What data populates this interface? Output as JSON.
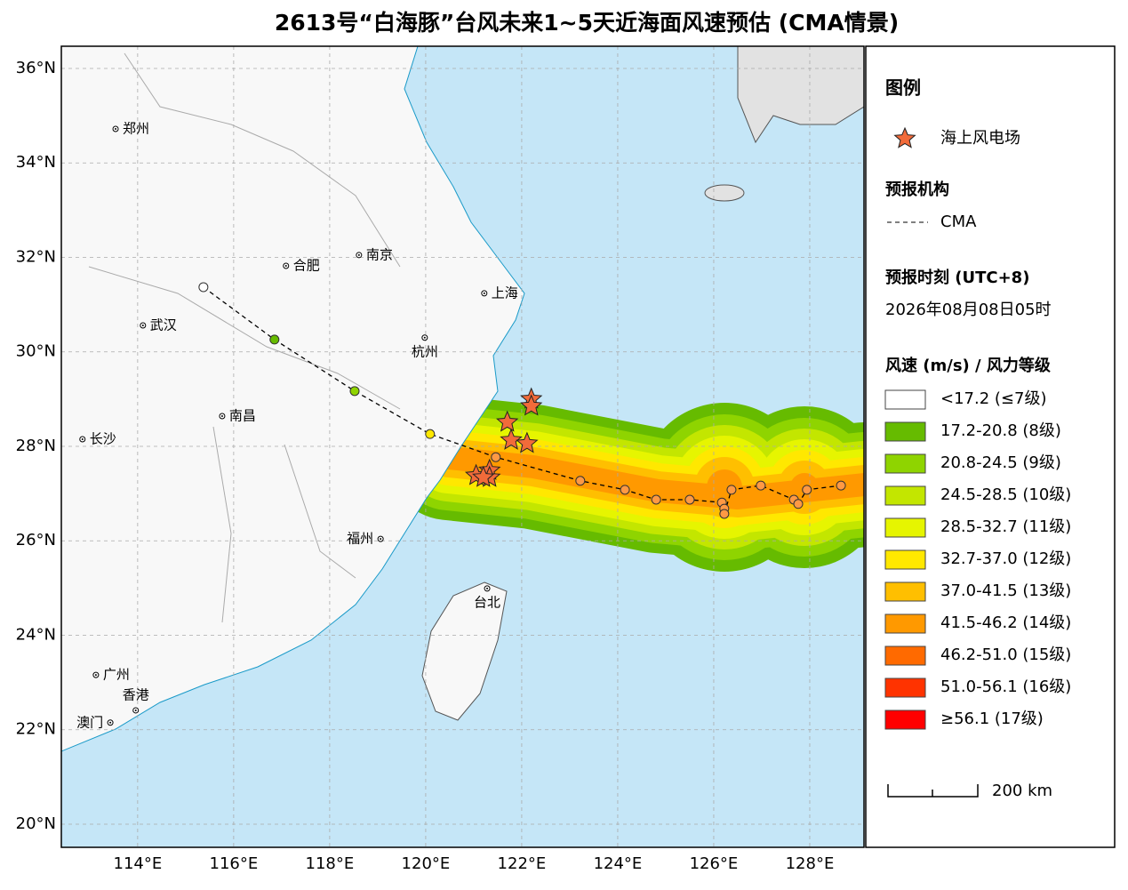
{
  "title": "2613号“白海豚”台风未来1~5天近海面风速预估 (CMA情景)",
  "map": {
    "xlim": [
      112.41,
      129.13
    ],
    "ylim": [
      19.51,
      36.47
    ],
    "yticks": [
      {
        "value": 20,
        "label": "20°N"
      },
      {
        "value": 22,
        "label": "22°N"
      },
      {
        "value": 24,
        "label": "24°N"
      },
      {
        "value": 26,
        "label": "26°N"
      },
      {
        "value": 28,
        "label": "28°N"
      },
      {
        "value": 30,
        "label": "30°N"
      },
      {
        "value": 32,
        "label": "32°N"
      },
      {
        "value": 34,
        "label": "34°N"
      },
      {
        "value": 36,
        "label": "36°N"
      }
    ],
    "xticks": [
      {
        "value": 114,
        "label": "114°E"
      },
      {
        "value": 116,
        "label": "116°E"
      },
      {
        "value": 118,
        "label": "118°E"
      },
      {
        "value": 120,
        "label": "120°E"
      },
      {
        "value": 122,
        "label": "122°E"
      },
      {
        "value": 124,
        "label": "124°E"
      },
      {
        "value": 126,
        "label": "126°E"
      },
      {
        "value": 128,
        "label": "128°E"
      }
    ],
    "grid": true
  },
  "cities": [
    {
      "label": "郑州",
      "lon": 113.54,
      "lat": 34.72
    },
    {
      "label": "合肥",
      "lon": 117.09,
      "lat": 31.82
    },
    {
      "label": "南京",
      "lon": 118.61,
      "lat": 32.05
    },
    {
      "label": "上海",
      "lon": 121.22,
      "lat": 31.24
    },
    {
      "label": "武汉",
      "lon": 114.11,
      "lat": 30.56
    },
    {
      "label": "杭州",
      "lon": 119.98,
      "lat": 30.3
    },
    {
      "label": "南昌",
      "lon": 115.76,
      "lat": 28.64
    },
    {
      "label": "长沙",
      "lon": 112.85,
      "lat": 28.15
    },
    {
      "label": "福州",
      "lon": 119.06,
      "lat": 26.04
    },
    {
      "label": "台北",
      "lon": 121.28,
      "lat": 24.99
    },
    {
      "label": "广州",
      "lon": 113.13,
      "lat": 23.16
    },
    {
      "label": "香港",
      "lon": 113.96,
      "lat": 22.41
    },
    {
      "label": "澳门",
      "lon": 113.43,
      "lat": 22.15
    }
  ],
  "track": [
    {
      "lon": 115.37,
      "lat": 31.37,
      "color": "#ffffff"
    },
    {
      "lon": 116.85,
      "lat": 30.26,
      "color": "#66bb00"
    },
    {
      "lon": 118.52,
      "lat": 29.17,
      "color": "#8fd400"
    },
    {
      "lon": 120.09,
      "lat": 28.26,
      "color": "#ffe800"
    },
    {
      "lon": 121.46,
      "lat": 27.77,
      "color": "#ff9944"
    },
    {
      "lon": 123.22,
      "lat": 27.27,
      "color": "#ff9944"
    },
    {
      "lon": 124.15,
      "lat": 27.08,
      "color": "#ff9944"
    },
    {
      "lon": 124.8,
      "lat": 26.87,
      "color": "#ff9944"
    },
    {
      "lon": 125.5,
      "lat": 26.87,
      "color": "#ff9944"
    },
    {
      "lon": 126.17,
      "lat": 26.81,
      "color": "#ff9944"
    },
    {
      "lon": 126.22,
      "lat": 26.68,
      "color": "#ff9944"
    },
    {
      "lon": 126.22,
      "lat": 26.57,
      "color": "#ff9944"
    },
    {
      "lon": 126.37,
      "lat": 27.08,
      "color": "#ff9944"
    },
    {
      "lon": 126.98,
      "lat": 27.17,
      "color": "#ff9944"
    },
    {
      "lon": 127.67,
      "lat": 26.87,
      "color": "#ff9944"
    },
    {
      "lon": 127.76,
      "lat": 26.78,
      "color": "#ff9944"
    },
    {
      "lon": 127.94,
      "lat": 27.08,
      "color": "#ff9944"
    },
    {
      "lon": 128.65,
      "lat": 27.17,
      "color": "#ff9944"
    }
  ],
  "stars": [
    {
      "lon": 122.2,
      "lat": 29.0
    },
    {
      "lon": 122.2,
      "lat": 28.85
    },
    {
      "lon": 121.7,
      "lat": 28.51
    },
    {
      "lon": 121.78,
      "lat": 28.13
    },
    {
      "lon": 122.11,
      "lat": 28.06
    },
    {
      "lon": 121.05,
      "lat": 27.38
    },
    {
      "lon": 121.33,
      "lat": 27.49
    },
    {
      "lon": 121.33,
      "lat": 27.34
    },
    {
      "lon": 121.2,
      "lat": 27.34
    }
  ],
  "legend": {
    "title": "图例",
    "star_label": "海上风电场",
    "agency_title": "预报机构",
    "agency": "CMA",
    "time_title": "预报时刻 (UTC+8)",
    "time": "2026年08月08日05时",
    "wind_title": "风速 (m/s) / 风力等级",
    "classes": [
      {
        "label": "<17.2 (≤7级)",
        "color": "#ffffff"
      },
      {
        "label": "17.2-20.8 (8级)",
        "color": "#66bb00"
      },
      {
        "label": "20.8-24.5 (9级)",
        "color": "#8fd400"
      },
      {
        "label": "24.5-28.5 (10级)",
        "color": "#c3e600"
      },
      {
        "label": "28.5-32.7 (11级)",
        "color": "#e6f500"
      },
      {
        "label": "32.7-37.0 (12级)",
        "color": "#ffe800"
      },
      {
        "label": "37.0-41.5 (13级)",
        "color": "#ffbf00"
      },
      {
        "label": "41.5-46.2 (14级)",
        "color": "#ff9900"
      },
      {
        "label": "46.2-51.0 (15级)",
        "color": "#ff6a00"
      },
      {
        "label": "51.0-56.1 (16级)",
        "color": "#ff3300"
      },
      {
        "label": "≥56.1 (17级)",
        "color": "#ff0000"
      }
    ],
    "scale": "200 km"
  }
}
